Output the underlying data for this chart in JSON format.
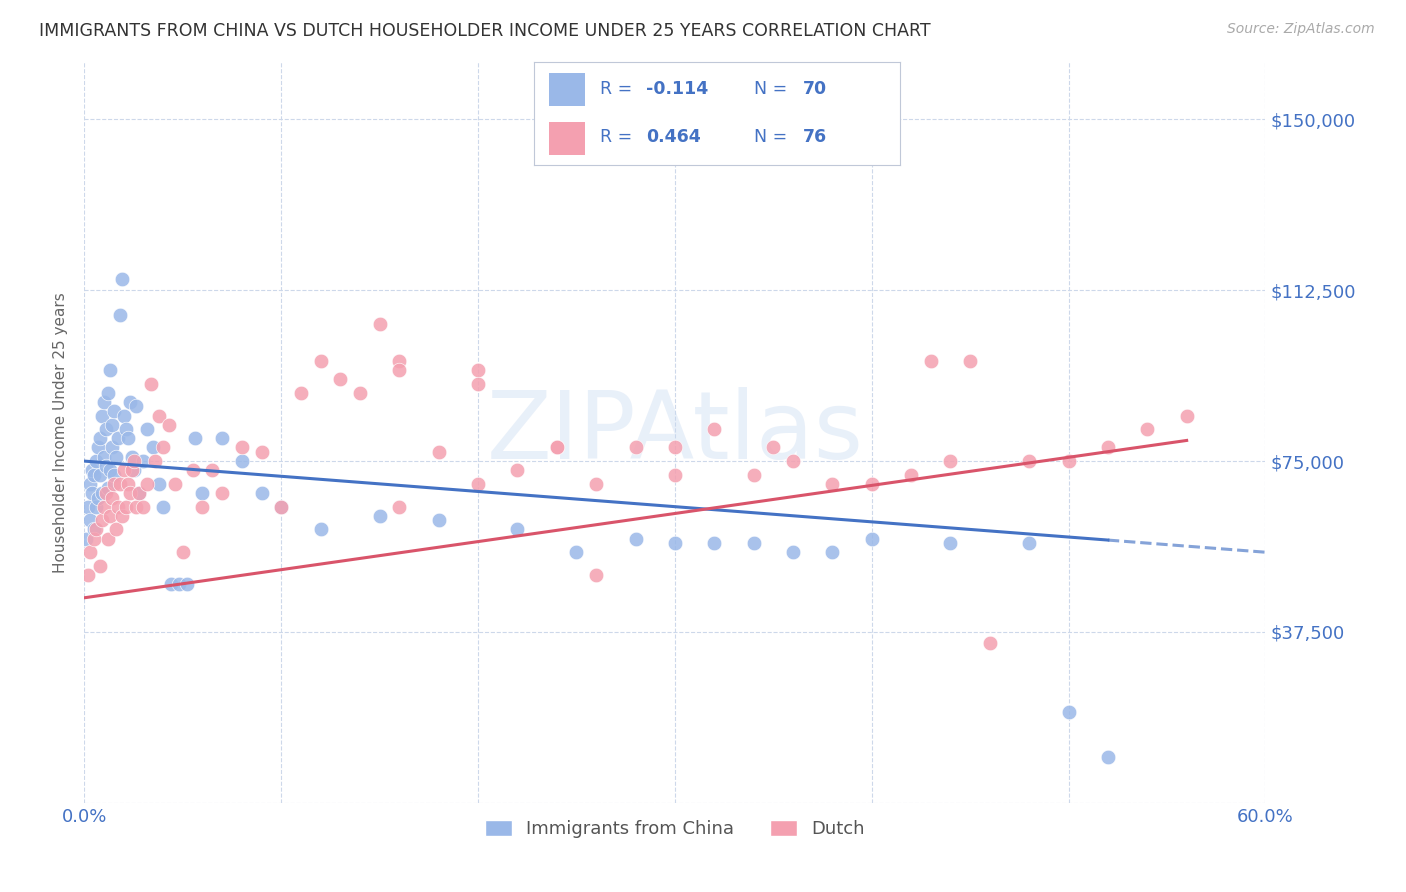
{
  "title": "IMMIGRANTS FROM CHINA VS DUTCH HOUSEHOLDER INCOME UNDER 25 YEARS CORRELATION CHART",
  "source": "Source: ZipAtlas.com",
  "ylabel": "Householder Income Under 25 years",
  "xlim": [
    0.0,
    0.6
  ],
  "ylim": [
    0,
    162500
  ],
  "yticks": [
    0,
    37500,
    75000,
    112500,
    150000
  ],
  "ytick_labels": [
    "",
    "$37,500",
    "$75,000",
    "$112,500",
    "$150,000"
  ],
  "xticks": [
    0.0,
    0.1,
    0.2,
    0.3,
    0.4,
    0.5,
    0.6
  ],
  "xtick_labels": [
    "0.0%",
    "",
    "",
    "",
    "",
    "",
    "60.0%"
  ],
  "series1_label": "Immigrants from China",
  "series2_label": "Dutch",
  "series1_color": "#9ab8e8",
  "series2_color": "#f4a0b0",
  "trend1_color": "#4472c4",
  "trend2_color": "#d9546a",
  "watermark": "ZIPAtlas",
  "watermark_color": "#c5d8f0",
  "background_color": "#ffffff",
  "grid_color": "#cdd8ea",
  "title_color": "#333333",
  "axis_label_color": "#4472c4",
  "legend_text_color": "#4472c4",
  "trend1_y_at_0": 75000,
  "trend1_y_at_60": 55000,
  "trend2_y_at_0": 45000,
  "trend2_y_at_60": 82000,
  "series1_x": [
    0.001,
    0.002,
    0.003,
    0.003,
    0.004,
    0.004,
    0.005,
    0.005,
    0.006,
    0.006,
    0.007,
    0.007,
    0.008,
    0.008,
    0.009,
    0.009,
    0.01,
    0.01,
    0.011,
    0.011,
    0.012,
    0.012,
    0.013,
    0.013,
    0.014,
    0.014,
    0.015,
    0.015,
    0.016,
    0.017,
    0.018,
    0.019,
    0.02,
    0.021,
    0.022,
    0.023,
    0.024,
    0.025,
    0.026,
    0.028,
    0.03,
    0.032,
    0.035,
    0.038,
    0.04,
    0.044,
    0.048,
    0.052,
    0.056,
    0.06,
    0.07,
    0.08,
    0.09,
    0.1,
    0.12,
    0.15,
    0.18,
    0.22,
    0.28,
    0.32,
    0.36,
    0.4,
    0.44,
    0.48,
    0.5,
    0.52,
    0.25,
    0.3,
    0.34,
    0.38
  ],
  "series1_y": [
    58000,
    65000,
    62000,
    70000,
    68000,
    73000,
    72000,
    60000,
    75000,
    65000,
    78000,
    67000,
    80000,
    72000,
    85000,
    68000,
    88000,
    76000,
    82000,
    74000,
    90000,
    69000,
    95000,
    73000,
    83000,
    78000,
    86000,
    72000,
    76000,
    80000,
    107000,
    115000,
    85000,
    82000,
    80000,
    88000,
    76000,
    73000,
    87000,
    68000,
    75000,
    82000,
    78000,
    70000,
    65000,
    48000,
    48000,
    48000,
    80000,
    68000,
    80000,
    75000,
    68000,
    65000,
    60000,
    63000,
    62000,
    60000,
    58000,
    57000,
    55000,
    58000,
    57000,
    57000,
    20000,
    10000,
    55000,
    57000,
    57000,
    55000
  ],
  "series2_x": [
    0.002,
    0.003,
    0.005,
    0.006,
    0.008,
    0.009,
    0.01,
    0.011,
    0.012,
    0.013,
    0.014,
    0.015,
    0.016,
    0.017,
    0.018,
    0.019,
    0.02,
    0.021,
    0.022,
    0.023,
    0.024,
    0.025,
    0.026,
    0.028,
    0.03,
    0.032,
    0.034,
    0.036,
    0.038,
    0.04,
    0.043,
    0.046,
    0.05,
    0.055,
    0.06,
    0.065,
    0.07,
    0.08,
    0.09,
    0.1,
    0.11,
    0.12,
    0.13,
    0.14,
    0.15,
    0.16,
    0.18,
    0.2,
    0.22,
    0.24,
    0.26,
    0.28,
    0.3,
    0.32,
    0.34,
    0.36,
    0.38,
    0.4,
    0.42,
    0.44,
    0.46,
    0.48,
    0.5,
    0.52,
    0.54,
    0.56,
    0.16,
    0.2,
    0.24,
    0.26,
    0.16,
    0.2,
    0.3,
    0.35,
    0.43,
    0.45
  ],
  "series2_y": [
    50000,
    55000,
    58000,
    60000,
    52000,
    62000,
    65000,
    68000,
    58000,
    63000,
    67000,
    70000,
    60000,
    65000,
    70000,
    63000,
    73000,
    65000,
    70000,
    68000,
    73000,
    75000,
    65000,
    68000,
    65000,
    70000,
    92000,
    75000,
    85000,
    78000,
    83000,
    70000,
    55000,
    73000,
    65000,
    73000,
    68000,
    78000,
    77000,
    65000,
    90000,
    97000,
    93000,
    90000,
    105000,
    65000,
    77000,
    70000,
    73000,
    78000,
    70000,
    78000,
    72000,
    82000,
    72000,
    75000,
    70000,
    70000,
    72000,
    75000,
    35000,
    75000,
    75000,
    78000,
    82000,
    85000,
    97000,
    95000,
    78000,
    50000,
    95000,
    92000,
    78000,
    78000,
    97000,
    97000
  ]
}
